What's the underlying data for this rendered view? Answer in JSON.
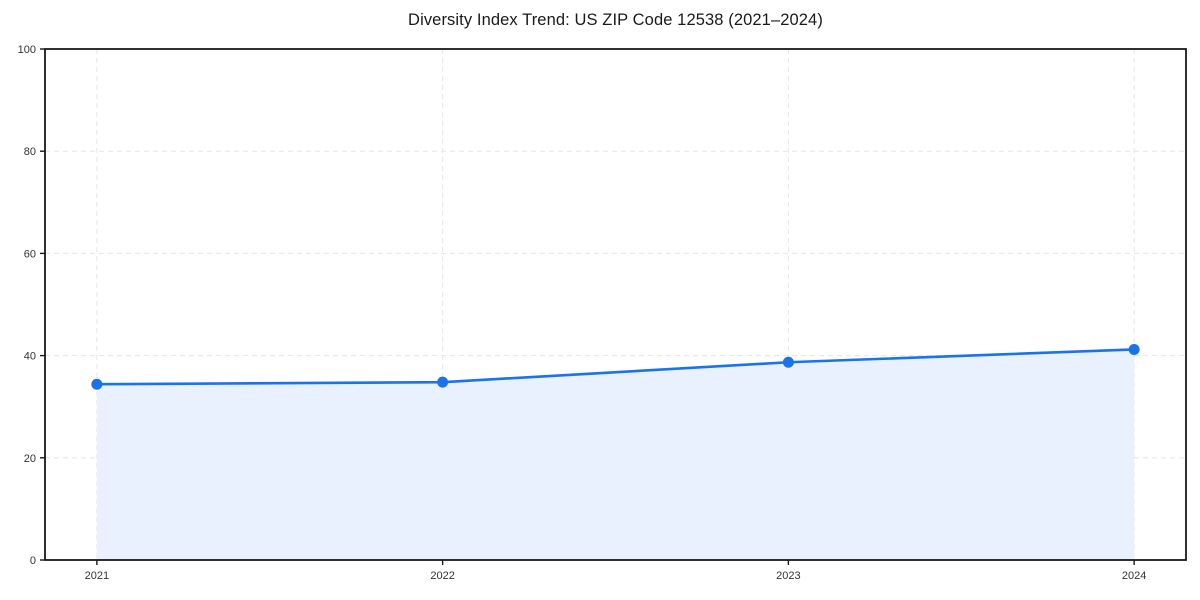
{
  "chart_data": {
    "type": "area",
    "title": "Diversity Index Trend: US ZIP Code 12538 (2021–2024)",
    "x": [
      2021,
      2022,
      2023,
      2024
    ],
    "categories": [
      "2021",
      "2022",
      "2023",
      "2024"
    ],
    "series": [
      {
        "name": "Diversity Index",
        "values": [
          34.4,
          34.8,
          38.7,
          41.2
        ]
      }
    ],
    "xlabel": "",
    "ylabel": "",
    "ylim": [
      0,
      100
    ],
    "yticks": [
      0,
      20,
      40,
      60,
      80,
      100
    ],
    "grid": "both-dashed",
    "legend_position": "none",
    "colors": {
      "line": "#1a73e8",
      "marker": "#1a73e8",
      "area_fill": "#e8f1fd",
      "gridline": "#e5e5e5",
      "spine": "#1a1a1a",
      "tick_label": "#333333",
      "background": "#ffffff"
    }
  }
}
